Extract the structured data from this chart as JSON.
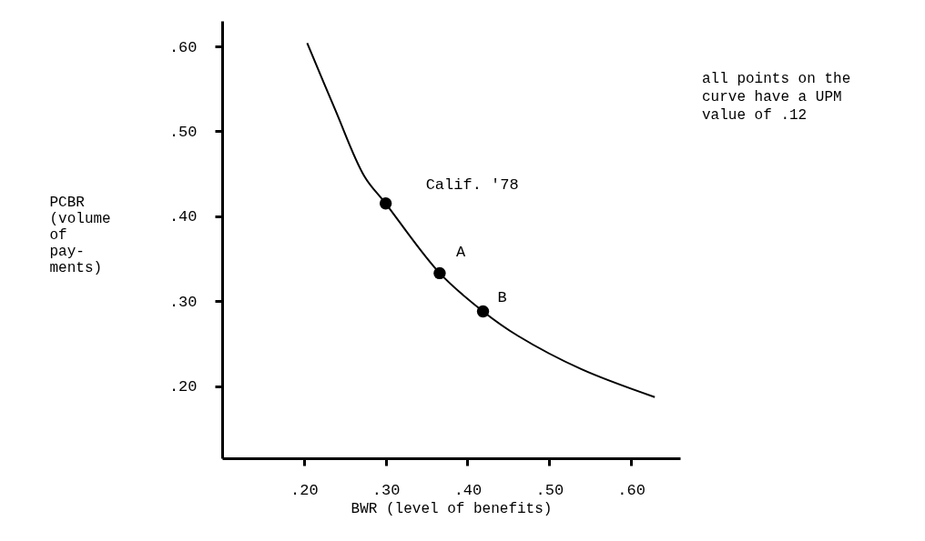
{
  "chart_data": {
    "type": "line",
    "xlabel": "BWR (level of benefits)",
    "ylabel": "PCBR\n(volume\n  of\npay-\nments)",
    "xlim": [
      0.1,
      0.66
    ],
    "ylim": [
      0.115,
      0.63
    ],
    "xticks": [
      {
        "value": 0.2,
        "label": ".20"
      },
      {
        "value": 0.3,
        "label": ".30"
      },
      {
        "value": 0.4,
        "label": ".40"
      },
      {
        "value": 0.5,
        "label": ".50"
      },
      {
        "value": 0.6,
        "label": ".60"
      }
    ],
    "yticks": [
      {
        "value": 0.2,
        "label": ".20"
      },
      {
        "value": 0.3,
        "label": ".30"
      },
      {
        "value": 0.4,
        "label": ".40"
      },
      {
        "value": 0.5,
        "label": ".50"
      },
      {
        "value": 0.6,
        "label": ".60"
      }
    ],
    "grid": false,
    "series": [
      {
        "color": "#000000",
        "x": [
          0.204,
          0.238,
          0.274,
          0.3,
          0.366,
          0.419,
          0.462,
          0.539,
          0.629
        ],
        "values": [
          0.604,
          0.526,
          0.447,
          0.415,
          0.333,
          0.288,
          0.259,
          0.22,
          0.187
        ]
      },
      {
        "type": "scatter",
        "color": "#000000",
        "marker": "circle",
        "x": [
          0.3,
          0.366,
          0.419
        ],
        "values": [
          0.415,
          0.333,
          0.288
        ]
      }
    ],
    "annotations": [
      {
        "text": "Calif. '78",
        "x": 0.3,
        "y": 0.415
      },
      {
        "text": "A",
        "x": 0.366,
        "y": 0.333
      },
      {
        "text": "B",
        "x": 0.419,
        "y": 0.288
      },
      "all points on the\ncurve have a UPM\nvalue of .12"
    ]
  }
}
